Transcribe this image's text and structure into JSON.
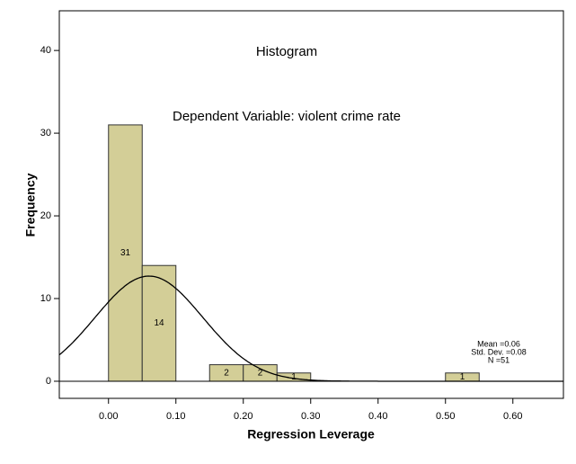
{
  "chart_data": {
    "type": "histogram",
    "title": "Histogram",
    "subtitle": "Dependent Variable: violent crime rate",
    "x_label": "Regression Leverage",
    "y_label": "Frequency",
    "bins": [
      0,
      0.05,
      0.1,
      0.15,
      0.2,
      0.25,
      0.3,
      0.35,
      0.4,
      0.45,
      0.5,
      0.55
    ],
    "values": [
      31,
      14,
      0,
      2,
      2,
      1,
      0,
      0,
      0,
      0,
      1
    ],
    "color": "#d3ce97",
    "xlim": [
      -0.073,
      0.675
    ],
    "ylim": [
      -2.07,
      44.8
    ],
    "xticks": [
      {
        "value": 0,
        "label": "0.00"
      },
      {
        "value": 0.1,
        "label": "0.10"
      },
      {
        "value": 0.2,
        "label": "0.20"
      },
      {
        "value": 0.3,
        "label": "0.30"
      },
      {
        "value": 0.4,
        "label": "0.40"
      },
      {
        "value": 0.5,
        "label": "0.50"
      },
      {
        "value": 0.6,
        "label": "0.60"
      }
    ],
    "yticks": [
      0,
      10,
      20,
      30,
      40
    ],
    "stats": [
      {
        "value": 0.06,
        "label": "Mean =0.06"
      },
      {
        "value": 0.08,
        "label": "Std. Dev. =0.08"
      },
      {
        "value": 51,
        "label": "N =51"
      }
    ]
  }
}
